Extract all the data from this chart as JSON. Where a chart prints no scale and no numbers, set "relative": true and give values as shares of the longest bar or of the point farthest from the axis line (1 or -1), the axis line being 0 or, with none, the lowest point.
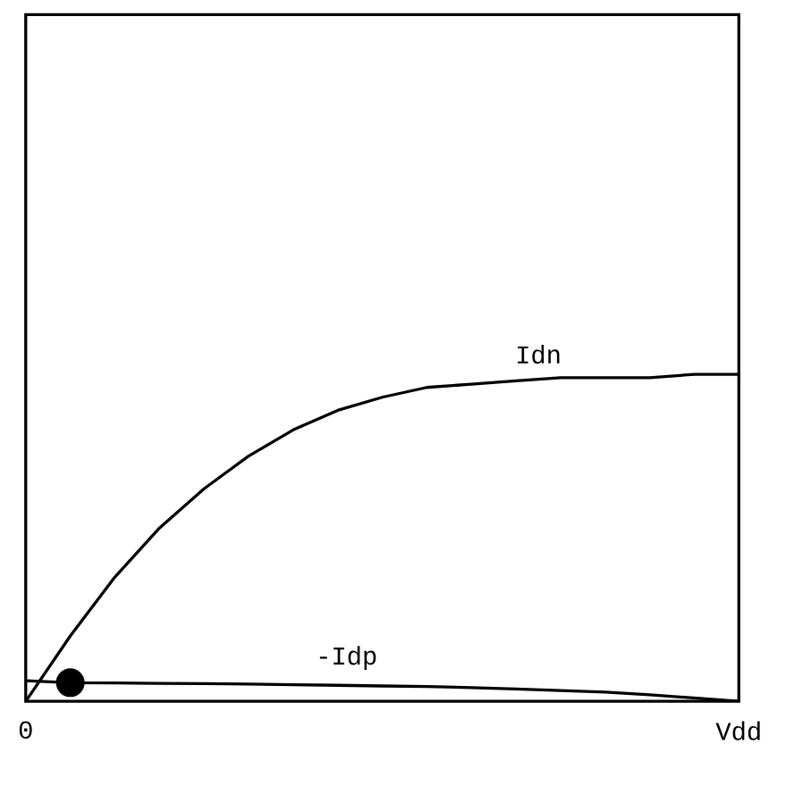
{
  "chart_data": {
    "type": "line",
    "relative": true,
    "categories": [
      "0",
      null,
      null,
      null,
      null,
      null,
      null,
      null,
      null,
      null,
      null,
      null,
      null,
      null,
      null,
      null,
      "Vdd"
    ],
    "tick_labels": "x",
    "series": [
      {
        "name": "Idn",
        "color": "#000000",
        "values": [
          0,
          0.2,
          0.38,
          0.53,
          0.65,
          0.75,
          0.83,
          0.89,
          0.93,
          0.96,
          0.97,
          0.98,
          0.99,
          0.99,
          0.99,
          1,
          1
        ]
      },
      {
        "name": "-Idp",
        "color": "#000000",
        "values": [
          0.063,
          0.057,
          0.056,
          0.055,
          0.054,
          0.053,
          0.051,
          0.049,
          0.047,
          0.045,
          0.042,
          0.038,
          0.033,
          0.028,
          0.02,
          0.01,
          0
        ]
      },
      {
        "type": "scatter",
        "marker": "circle",
        "color": "#000000",
        "values": [
          null,
          0.057,
          null,
          null,
          null,
          null,
          null,
          null,
          null,
          null,
          null,
          null,
          null,
          null,
          null,
          null,
          null
        ]
      }
    ]
  }
}
